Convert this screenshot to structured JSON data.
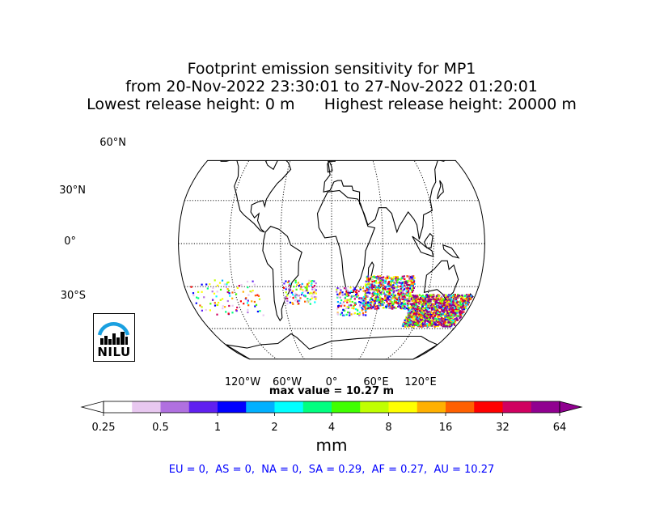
{
  "title": {
    "line1": "Footprint emission sensitivity for MP1",
    "line2": "from 20-Nov-2022 23:30:01 to 27-Nov-2022 01:20:01",
    "line3": "Lowest release height: 0 m      Highest release height: 20000 m"
  },
  "map": {
    "projection": "robinson",
    "lat_labels": [
      "60°N",
      "30°N",
      "0°",
      "30°S"
    ],
    "lon_labels": [
      "120°W",
      "60°W",
      "0°",
      "60°E",
      "120°E"
    ]
  },
  "max_value_label": "max value = 10.27 m",
  "colorbar": {
    "ticks": [
      "0.25",
      "0.5",
      "1",
      "2",
      "4",
      "8",
      "16",
      "32",
      "64"
    ],
    "units": "mm",
    "colors": [
      "#ffffff",
      "#e8c8f0",
      "#b070e0",
      "#6020f0",
      "#0000ff",
      "#00b0ff",
      "#00ffff",
      "#00ff80",
      "#40ff00",
      "#c0ff00",
      "#ffff00",
      "#ffb000",
      "#ff6000",
      "#ff0000",
      "#d00060",
      "#900090"
    ]
  },
  "regions": "EU = 0,  AS = 0,  NA = 0,  SA = 0.29,  AF = 0.27,  AU = 10.27",
  "logo": {
    "text": "NILU"
  }
}
